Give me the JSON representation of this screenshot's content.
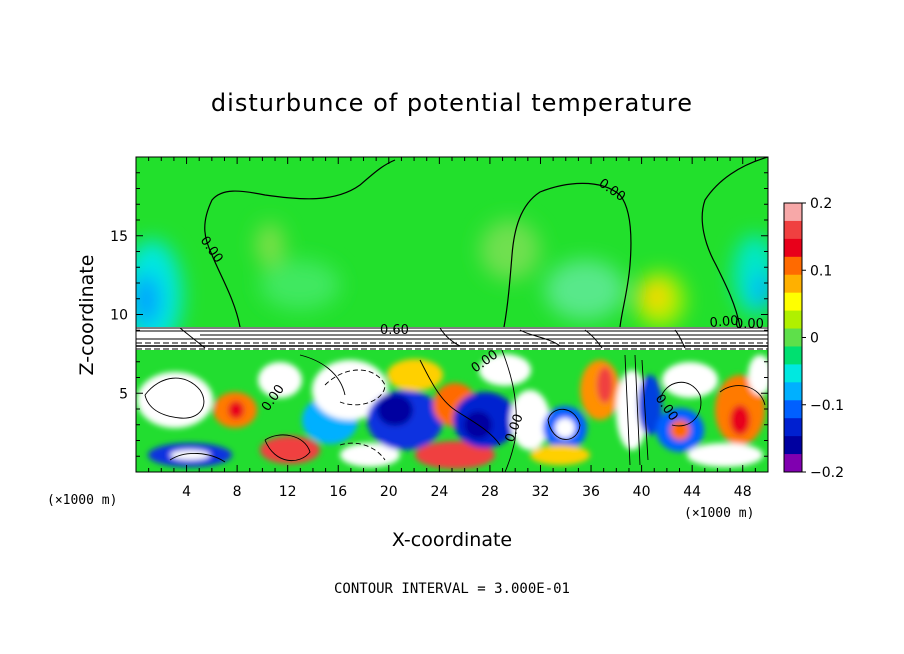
{
  "chart_data": {
    "type": "heatmap",
    "title": "disturbunce of potential temperature",
    "xlabel": "X-coordinate",
    "ylabel": "Z-coordinate",
    "x_unit": "(×1000 m)",
    "x_unit_right": "(×1000 m)",
    "xlim": [
      0,
      50
    ],
    "ylim": [
      0,
      20
    ],
    "x_ticks": [
      "4",
      "8",
      "12",
      "16",
      "20",
      "24",
      "28",
      "32",
      "36",
      "40",
      "44",
      "48"
    ],
    "y_ticks": [
      "5",
      "10",
      "15"
    ],
    "colorbar": {
      "ticks": [
        "0.2",
        "0.1",
        "0",
        "−0.1",
        "−0.2"
      ],
      "range": [
        -0.2,
        0.2
      ],
      "colors": [
        "#f7a8a8",
        "#f04040",
        "#e8001a",
        "#ff6a00",
        "#ffb000",
        "#ffff00",
        "#b0f000",
        "#5ee04a",
        "#00e070",
        "#00e8e0",
        "#00b0ff",
        "#0060ff",
        "#0020d0",
        "#0000a0",
        "#8000b0"
      ]
    },
    "contour_labels": [
      "0.00",
      "0.00",
      "0.00",
      "0.60",
      "0.00",
      "0.00",
      "0.00",
      "0.00",
      "0.00"
    ],
    "footer": "CONTOUR INTERVAL = 3.000E-01",
    "grid": false,
    "legend": "right"
  }
}
